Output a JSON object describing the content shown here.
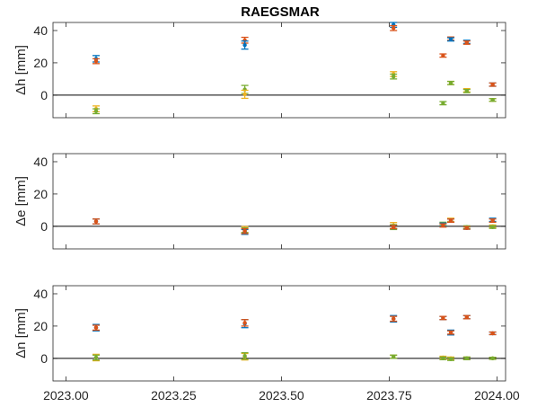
{
  "chart_data": {
    "type": "scatter",
    "title": "RAEGSMAR",
    "grid": false,
    "x_ticks": [
      "2023.00",
      "2023.25",
      "2023.50",
      "2023.75",
      "2024.00"
    ],
    "x_tick_values": [
      2023.0,
      2023.25,
      2023.5,
      2023.75,
      2024.0
    ],
    "xlim": [
      2022.97,
      2024.02
    ],
    "series_colors": {
      "blue": "#0072BD",
      "red": "#D95319",
      "yellow": "#EDB120",
      "green": "#77AC30"
    },
    "panels": [
      {
        "ylabel": "Δh [mm]",
        "ylim": [
          -14,
          45
        ],
        "yticks": [
          0,
          20,
          40
        ],
        "points": [
          {
            "c": "blue",
            "x": 2023.07,
            "y": 22.5,
            "e": 2.0
          },
          {
            "c": "red",
            "x": 2023.07,
            "y": 21.0,
            "e": 1.5
          },
          {
            "c": "yellow",
            "x": 2023.07,
            "y": -8.5,
            "e": 1.8
          },
          {
            "c": "green",
            "x": 2023.07,
            "y": -10.0,
            "e": 1.5
          },
          {
            "c": "red",
            "x": 2023.415,
            "y": 34.0,
            "e": 1.8
          },
          {
            "c": "blue",
            "x": 2023.415,
            "y": 31.0,
            "e": 2.5
          },
          {
            "c": "green",
            "x": 2023.415,
            "y": 3.5,
            "e": 2.5
          },
          {
            "c": "yellow",
            "x": 2023.415,
            "y": 0.5,
            "e": 2.5
          },
          {
            "c": "blue",
            "x": 2023.76,
            "y": 43.5,
            "e": 1.5
          },
          {
            "c": "red",
            "x": 2023.76,
            "y": 41.5,
            "e": 1.5
          },
          {
            "c": "yellow",
            "x": 2023.76,
            "y": 13.0,
            "e": 1.5
          },
          {
            "c": "green",
            "x": 2023.76,
            "y": 11.5,
            "e": 1.5
          },
          {
            "c": "red",
            "x": 2023.875,
            "y": 24.5,
            "e": 1.0
          },
          {
            "c": "green",
            "x": 2023.875,
            "y": -5.0,
            "e": 1.0
          },
          {
            "c": "red",
            "x": 2023.893,
            "y": 35.0,
            "e": 1.0
          },
          {
            "c": "blue",
            "x": 2023.893,
            "y": 34.5,
            "e": 1.0
          },
          {
            "c": "yellow",
            "x": 2023.893,
            "y": 7.5,
            "e": 1.0
          },
          {
            "c": "green",
            "x": 2023.893,
            "y": 7.5,
            "e": 1.0
          },
          {
            "c": "blue",
            "x": 2023.93,
            "y": 33.0,
            "e": 1.0
          },
          {
            "c": "red",
            "x": 2023.93,
            "y": 32.5,
            "e": 1.0
          },
          {
            "c": "yellow",
            "x": 2023.93,
            "y": 3.0,
            "e": 1.0
          },
          {
            "c": "green",
            "x": 2023.93,
            "y": 2.5,
            "e": 1.0
          },
          {
            "c": "blue",
            "x": 2023.99,
            "y": 6.5,
            "e": 1.0
          },
          {
            "c": "red",
            "x": 2023.99,
            "y": 6.5,
            "e": 1.0
          },
          {
            "c": "yellow",
            "x": 2023.99,
            "y": -3.0,
            "e": 0.8
          },
          {
            "c": "green",
            "x": 2023.99,
            "y": -3.0,
            "e": 0.8
          }
        ]
      },
      {
        "ylabel": "Δe [mm]",
        "ylim": [
          -14,
          45
        ],
        "yticks": [
          0,
          20,
          40
        ],
        "points": [
          {
            "c": "blue",
            "x": 2023.07,
            "y": 3.0,
            "e": 1.5
          },
          {
            "c": "red",
            "x": 2023.07,
            "y": 3.0,
            "e": 1.5
          },
          {
            "c": "yellow",
            "x": 2023.415,
            "y": -2.0,
            "e": 1.8
          },
          {
            "c": "green",
            "x": 2023.415,
            "y": -2.5,
            "e": 1.5
          },
          {
            "c": "blue",
            "x": 2023.415,
            "y": -3.5,
            "e": 1.5
          },
          {
            "c": "red",
            "x": 2023.415,
            "y": -3.0,
            "e": 1.5
          },
          {
            "c": "yellow",
            "x": 2023.76,
            "y": 0.5,
            "e": 1.8
          },
          {
            "c": "green",
            "x": 2023.76,
            "y": -0.5,
            "e": 1.5
          },
          {
            "c": "blue",
            "x": 2023.76,
            "y": -0.5,
            "e": 1.0
          },
          {
            "c": "red",
            "x": 2023.76,
            "y": -0.5,
            "e": 1.0
          },
          {
            "c": "green",
            "x": 2023.875,
            "y": 1.5,
            "e": 1.0
          },
          {
            "c": "blue",
            "x": 2023.875,
            "y": 1.0,
            "e": 1.0
          },
          {
            "c": "red",
            "x": 2023.875,
            "y": 0.5,
            "e": 1.0
          },
          {
            "c": "yellow",
            "x": 2023.893,
            "y": 4.0,
            "e": 1.0
          },
          {
            "c": "blue",
            "x": 2023.893,
            "y": 3.5,
            "e": 1.0
          },
          {
            "c": "red",
            "x": 2023.893,
            "y": 3.5,
            "e": 1.0
          },
          {
            "c": "green",
            "x": 2023.93,
            "y": -0.5,
            "e": 0.8
          },
          {
            "c": "blue",
            "x": 2023.93,
            "y": -1.0,
            "e": 0.8
          },
          {
            "c": "red",
            "x": 2023.93,
            "y": -1.0,
            "e": 0.8
          },
          {
            "c": "blue",
            "x": 2023.99,
            "y": 4.0,
            "e": 1.0
          },
          {
            "c": "red",
            "x": 2023.99,
            "y": 3.5,
            "e": 1.0
          },
          {
            "c": "yellow",
            "x": 2023.99,
            "y": 0.0,
            "e": 0.8
          },
          {
            "c": "green",
            "x": 2023.99,
            "y": -0.5,
            "e": 0.8
          }
        ]
      },
      {
        "ylabel": "Δn [mm]",
        "ylim": [
          -14,
          45
        ],
        "yticks": [
          0,
          20,
          40
        ],
        "points": [
          {
            "c": "blue",
            "x": 2023.07,
            "y": 19.0,
            "e": 2.0
          },
          {
            "c": "red",
            "x": 2023.07,
            "y": 19.0,
            "e": 1.5
          },
          {
            "c": "yellow",
            "x": 2023.07,
            "y": 0.5,
            "e": 2.0
          },
          {
            "c": "green",
            "x": 2023.07,
            "y": 0.5,
            "e": 1.5
          },
          {
            "c": "blue",
            "x": 2023.415,
            "y": 21.5,
            "e": 2.5
          },
          {
            "c": "red",
            "x": 2023.415,
            "y": 22.0,
            "e": 2.0
          },
          {
            "c": "yellow",
            "x": 2023.415,
            "y": 1.0,
            "e": 2.0
          },
          {
            "c": "green",
            "x": 2023.415,
            "y": 1.5,
            "e": 2.0
          },
          {
            "c": "blue",
            "x": 2023.76,
            "y": 24.5,
            "e": 2.0
          },
          {
            "c": "red",
            "x": 2023.76,
            "y": 24.5,
            "e": 1.5
          },
          {
            "c": "yellow",
            "x": 2023.76,
            "y": 1.0,
            "e": 1.0
          },
          {
            "c": "green",
            "x": 2023.76,
            "y": 1.0,
            "e": 1.0
          },
          {
            "c": "blue",
            "x": 2023.875,
            "y": 25.0,
            "e": 1.0
          },
          {
            "c": "red",
            "x": 2023.875,
            "y": 25.0,
            "e": 1.0
          },
          {
            "c": "yellow",
            "x": 2023.875,
            "y": 0.5,
            "e": 0.8
          },
          {
            "c": "green",
            "x": 2023.875,
            "y": 0.0,
            "e": 0.8
          },
          {
            "c": "blue",
            "x": 2023.893,
            "y": 16.0,
            "e": 1.5
          },
          {
            "c": "red",
            "x": 2023.893,
            "y": 16.0,
            "e": 1.0
          },
          {
            "c": "yellow",
            "x": 2023.893,
            "y": 0.0,
            "e": 0.8
          },
          {
            "c": "green",
            "x": 2023.893,
            "y": -0.5,
            "e": 0.8
          },
          {
            "c": "blue",
            "x": 2023.93,
            "y": 25.5,
            "e": 1.0
          },
          {
            "c": "red",
            "x": 2023.93,
            "y": 25.5,
            "e": 1.0
          },
          {
            "c": "yellow",
            "x": 2023.93,
            "y": 0.0,
            "e": 0.8
          },
          {
            "c": "green",
            "x": 2023.93,
            "y": 0.0,
            "e": 0.8
          },
          {
            "c": "blue",
            "x": 2023.99,
            "y": 15.5,
            "e": 0.8
          },
          {
            "c": "red",
            "x": 2023.99,
            "y": 15.5,
            "e": 0.8
          },
          {
            "c": "yellow",
            "x": 2023.99,
            "y": 0.0,
            "e": 0.6
          },
          {
            "c": "green",
            "x": 2023.99,
            "y": 0.0,
            "e": 0.6
          }
        ]
      }
    ]
  }
}
